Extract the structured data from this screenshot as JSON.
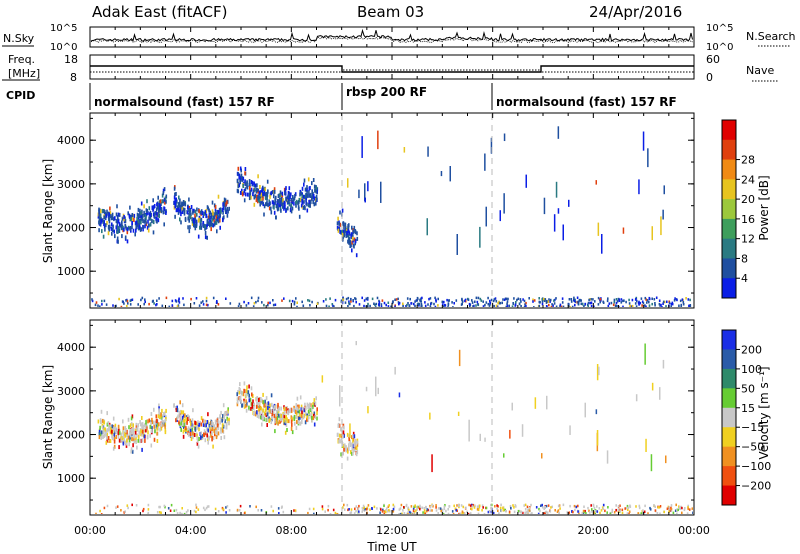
{
  "header": {
    "radar": "Adak East (fitACF)",
    "beam": "Beam 03",
    "date": "24/Apr/2016"
  },
  "panels": {
    "nsky": {
      "label": "N.Sky",
      "right_label": "N.Search",
      "ticks_left": [
        "10^5",
        "10^0"
      ],
      "ticks_right": [
        "10^5",
        "10^0"
      ]
    },
    "freq": {
      "label_line1": "Freq.",
      "label_line2": "[MHz]",
      "right_label": "Nave",
      "ticks_left": [
        "18",
        "8"
      ],
      "ticks_right": [
        "60",
        "0"
      ]
    },
    "cpid": {
      "label": "CPID",
      "segments": [
        {
          "name": "normalsound (fast) 157 RF",
          "start_h": 0,
          "end_h": 10
        },
        {
          "name": "rbsp 200 RF",
          "start_h": 10,
          "end_h": 16
        },
        {
          "name": "normalsound (fast) 157 RF",
          "start_h": 16,
          "end_h": 24
        }
      ]
    }
  },
  "x_axis": {
    "label": "Time UT",
    "ticks": [
      "00:00",
      "04:00",
      "08:00",
      "12:00",
      "16:00",
      "20:00",
      "00:00"
    ]
  },
  "chart_data": [
    {
      "type": "heatmap",
      "title": "",
      "xlabel": "Time UT",
      "ylabel": "Slant Range [km]",
      "x_range_h": [
        0,
        24
      ],
      "ylim": [
        180,
        4600
      ],
      "yticks": [
        "1000",
        "2000",
        "3000",
        "4000"
      ],
      "colorbar": {
        "label": "Power [dB]",
        "ticks": [
          "4",
          "8",
          "12",
          "16",
          "20",
          "24",
          "28"
        ],
        "colors": [
          "#0a1ee6",
          "#1f4fa0",
          "#2a7a82",
          "#3e9e5c",
          "#9cc83c",
          "#e7c41f",
          "#f08a14",
          "#e0400e",
          "#e00000"
        ]
      },
      "scatter_bands": [
        {
          "start_h": 0.3,
          "end_h": 3.0,
          "range_start": 2300,
          "range_end": 2550,
          "dip": 300
        },
        {
          "start_h": 3.3,
          "end_h": 5.5,
          "range_start": 2700,
          "range_end": 2550,
          "dip": 400
        },
        {
          "start_h": 5.8,
          "end_h": 9.0,
          "range_start": 3100,
          "range_end": 2800,
          "dip": 300
        },
        {
          "start_h": 9.8,
          "end_h": 10.6,
          "range_start": 2200,
          "range_end": 1800,
          "dip": 100
        }
      ]
    },
    {
      "type": "heatmap",
      "title": "",
      "xlabel": "Time UT",
      "ylabel": "Slant Range [km]",
      "x_range_h": [
        0,
        24
      ],
      "ylim": [
        180,
        4600
      ],
      "yticks": [
        "1000",
        "2000",
        "3000",
        "4000"
      ],
      "colorbar": {
        "label": "Velocity [m s⁻¹]",
        "ticks": [
          "200",
          "100",
          "50",
          "15",
          "−15",
          "−50",
          "−100",
          "−200"
        ],
        "colors": [
          "#1a2ee6",
          "#2a5ba8",
          "#2e8a6a",
          "#66cc33",
          "#c8c8c8",
          "#f0d020",
          "#f09020",
          "#f05010",
          "#e00000"
        ]
      },
      "scatter_bands": [
        {
          "start_h": 0.3,
          "end_h": 3.0,
          "range_start": 2200,
          "range_end": 2400,
          "dip": 250
        },
        {
          "start_h": 3.3,
          "end_h": 5.5,
          "range_start": 2550,
          "range_end": 2400,
          "dip": 350
        },
        {
          "start_h": 5.8,
          "end_h": 9.0,
          "range_start": 3000,
          "range_end": 2600,
          "dip": 300
        },
        {
          "start_h": 9.8,
          "end_h": 10.6,
          "range_start": 2100,
          "range_end": 1800,
          "dip": 100
        }
      ]
    }
  ]
}
